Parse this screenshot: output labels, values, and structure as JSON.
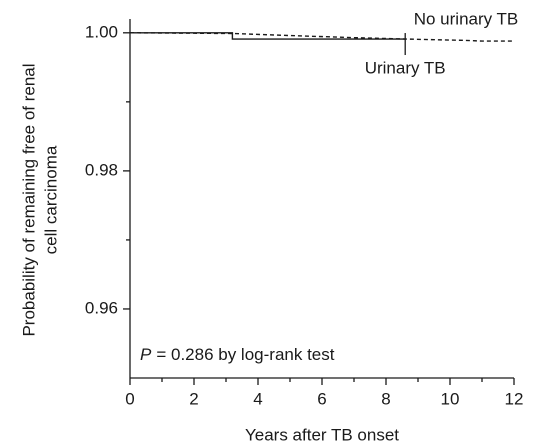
{
  "chart_data": {
    "type": "line",
    "xlabel": "Years after TB onset",
    "ylabel": [
      "Probability of remaining free of renal",
      "cell carcinoma"
    ],
    "annotation": {
      "italic": "P",
      "text": "= 0.286 by log-rank test"
    },
    "xlim": [
      0,
      12
    ],
    "xticks": [
      0,
      2,
      4,
      6,
      8,
      10,
      12
    ],
    "xminor": [
      1,
      3,
      5,
      7,
      9,
      11
    ],
    "ylim": [
      0.95,
      1.002
    ],
    "yticks": [
      {
        "value": 0.96,
        "label": "0.96"
      },
      {
        "value": 0.98,
        "label": "0.98"
      },
      {
        "value": 1.0,
        "label": "1.00"
      }
    ],
    "yminor": [
      0.97,
      0.99
    ],
    "series": [
      {
        "name": "Urinary TB",
        "color": "#1a1a1a",
        "dash": false,
        "x": [
          0,
          3.2,
          3.2,
          8.6
        ],
        "values": [
          1.0,
          1.0,
          0.9991,
          0.9991
        ]
      },
      {
        "name": "No urinary TB",
        "color": "#1a1a1a",
        "dash": true,
        "x": [
          0,
          3.2,
          5,
          7,
          8.6,
          9.5,
          10.5,
          11,
          12
        ],
        "values": [
          1.0,
          0.9999,
          0.9996,
          0.9993,
          0.9991,
          0.999,
          0.9989,
          0.9988,
          0.9988
        ]
      }
    ]
  }
}
